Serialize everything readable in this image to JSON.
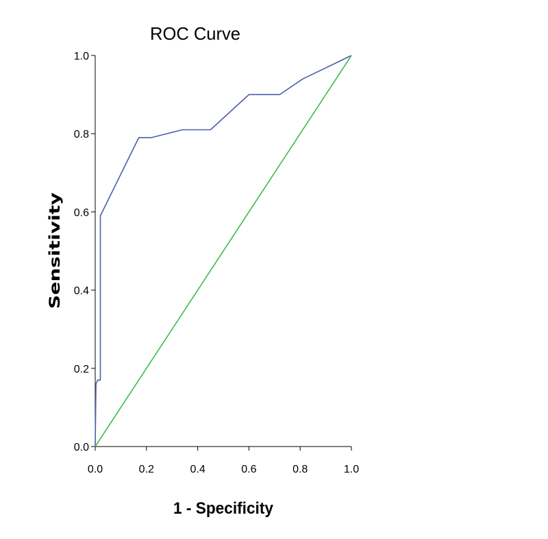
{
  "chart_data": {
    "type": "line",
    "title": "ROC Curve",
    "xlabel": "1 - Specificity",
    "ylabel": "Sensitivity",
    "xlim": [
      0.0,
      1.0
    ],
    "ylim": [
      0.0,
      1.0
    ],
    "xticks": [
      "0.0",
      "0.2",
      "0.4",
      "0.6",
      "0.8",
      "1.0"
    ],
    "yticks": [
      "0.0",
      "0.2",
      "0.4",
      "0.6",
      "0.8",
      "1.0"
    ],
    "grid": false,
    "series": [
      {
        "color": "#4a5fa8",
        "x": [
          0.0,
          0.003,
          0.01,
          0.02,
          0.02,
          0.17,
          0.22,
          0.34,
          0.45,
          0.6,
          0.72,
          0.81,
          1.0
        ],
        "y": [
          0.0,
          0.16,
          0.17,
          0.17,
          0.59,
          0.79,
          0.79,
          0.81,
          0.81,
          0.9,
          0.9,
          0.94,
          1.0
        ]
      },
      {
        "color": "#3dbb4a",
        "x": [
          0.0,
          1.0
        ],
        "y": [
          0.0,
          1.0
        ]
      }
    ]
  }
}
